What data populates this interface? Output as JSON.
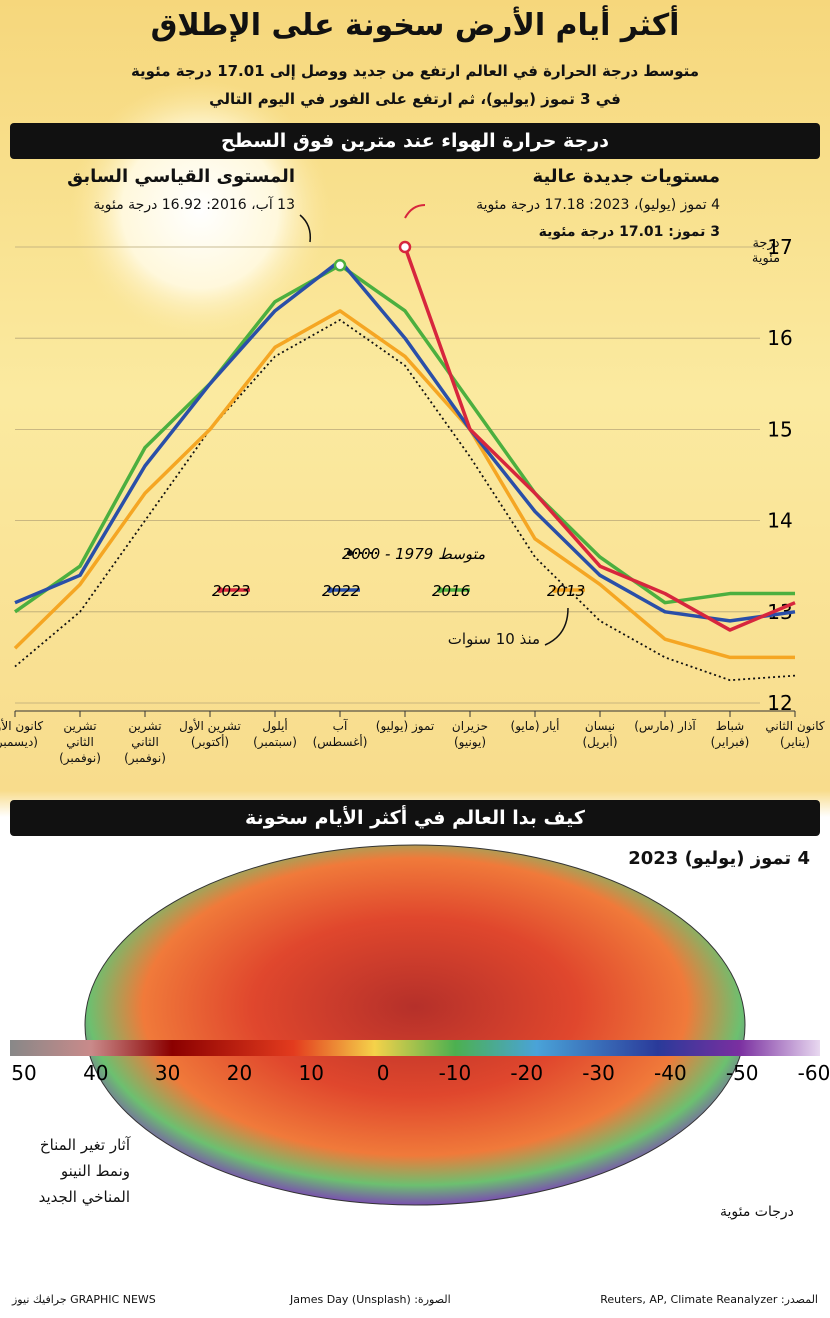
{
  "header": {
    "title": "أكثر أيام الأرض سخونة على الإطلاق",
    "subtitle": [
      "متوسط درجة الحرارة في العالم ارتفع من جديد ووصل إلى 17.01 درجة مئوية",
      "في 3 تموز (يوليو)، ثم ارتفع على الفور في اليوم التالي"
    ]
  },
  "chart_data": {
    "type": "line",
    "title": "درجة حرارة الهواء عند مترين فوق السطح",
    "y_label": "درجة مئوية",
    "categories": [
      "كانون الثاني (يناير)",
      "شباط (فبراير)",
      "آذار (مارس)",
      "نيسان (أبريل)",
      "أيار (مايو)",
      "حزيران (يونيو)",
      "تموز (يوليو)",
      "آب (أغسطس)",
      "أيلول (سبتمبر)",
      "تشرين الأول (أكتوبر)",
      "تشرين الثاني (نوفمبر)",
      "تشرين الثاني (نوفمبر)",
      "كانون الأول (ديسمبر)"
    ],
    "series": [
      {
        "name": "متوسط 1979 - 2000",
        "color": "#111111",
        "values": [
          12.3,
          12.25,
          12.5,
          12.9,
          13.6,
          14.7,
          15.7,
          16.2,
          15.8,
          15.0,
          14.0,
          13.0,
          12.4
        ]
      },
      {
        "name": "2013",
        "color": "#f5a623",
        "values": [
          12.5,
          12.5,
          12.7,
          13.3,
          13.8,
          15.0,
          15.8,
          16.3,
          15.9,
          15.0,
          14.3,
          13.3,
          12.6
        ]
      },
      {
        "name": "2016",
        "color": "#4caf3f",
        "values": [
          13.2,
          13.2,
          13.1,
          13.6,
          14.3,
          15.3,
          16.3,
          16.8,
          16.4,
          15.5,
          14.8,
          13.5,
          13.0
        ]
      },
      {
        "name": "2022",
        "color": "#2a4fa8",
        "values": [
          13.0,
          12.9,
          13.0,
          13.4,
          14.1,
          15.0,
          16.0,
          16.85,
          16.3,
          15.5,
          14.6,
          13.4,
          13.1
        ]
      },
      {
        "name": "2023",
        "color": "#d7263d",
        "values": [
          13.1,
          12.8,
          13.2,
          13.5,
          14.3,
          15.0,
          17.0,
          null,
          null,
          null,
          null,
          null,
          null
        ]
      }
    ],
    "ylim": [
      12,
      17
    ],
    "yticks": [
      12,
      13,
      14,
      15,
      16,
      17
    ],
    "grid": true,
    "annotations": [
      "المستوى القياسي السابق",
      "13 آب، 2016: 16.92 درجة مئوية",
      "مستويات جديدة عالية",
      "4 تموز (يوليو)، 2023: 17.18 درجة مئوية",
      "3 تموز: 17.01 درجة مئوية",
      "منذ 10 سنوات"
    ]
  },
  "map": {
    "title": "كيف بدا العالم في أكثر الأيام سخونة",
    "date": "4 تموز (يوليو) 2023",
    "note": "آثار تغير المناخ ونمط النينو المناخي الجديد",
    "unit": "درجات مئوية",
    "scale": [
      "50",
      "40",
      "30",
      "20",
      "10",
      "0",
      "10-",
      "20-",
      "30-",
      "40-",
      "50-",
      "60-"
    ]
  },
  "footer": {
    "brand": "GRAPHIC NEWS جرافيك نيوز",
    "photo": "الصورة: James Day (Unsplash)",
    "source": "المصدر: Reuters, AP, Climate Reanalyzer"
  }
}
